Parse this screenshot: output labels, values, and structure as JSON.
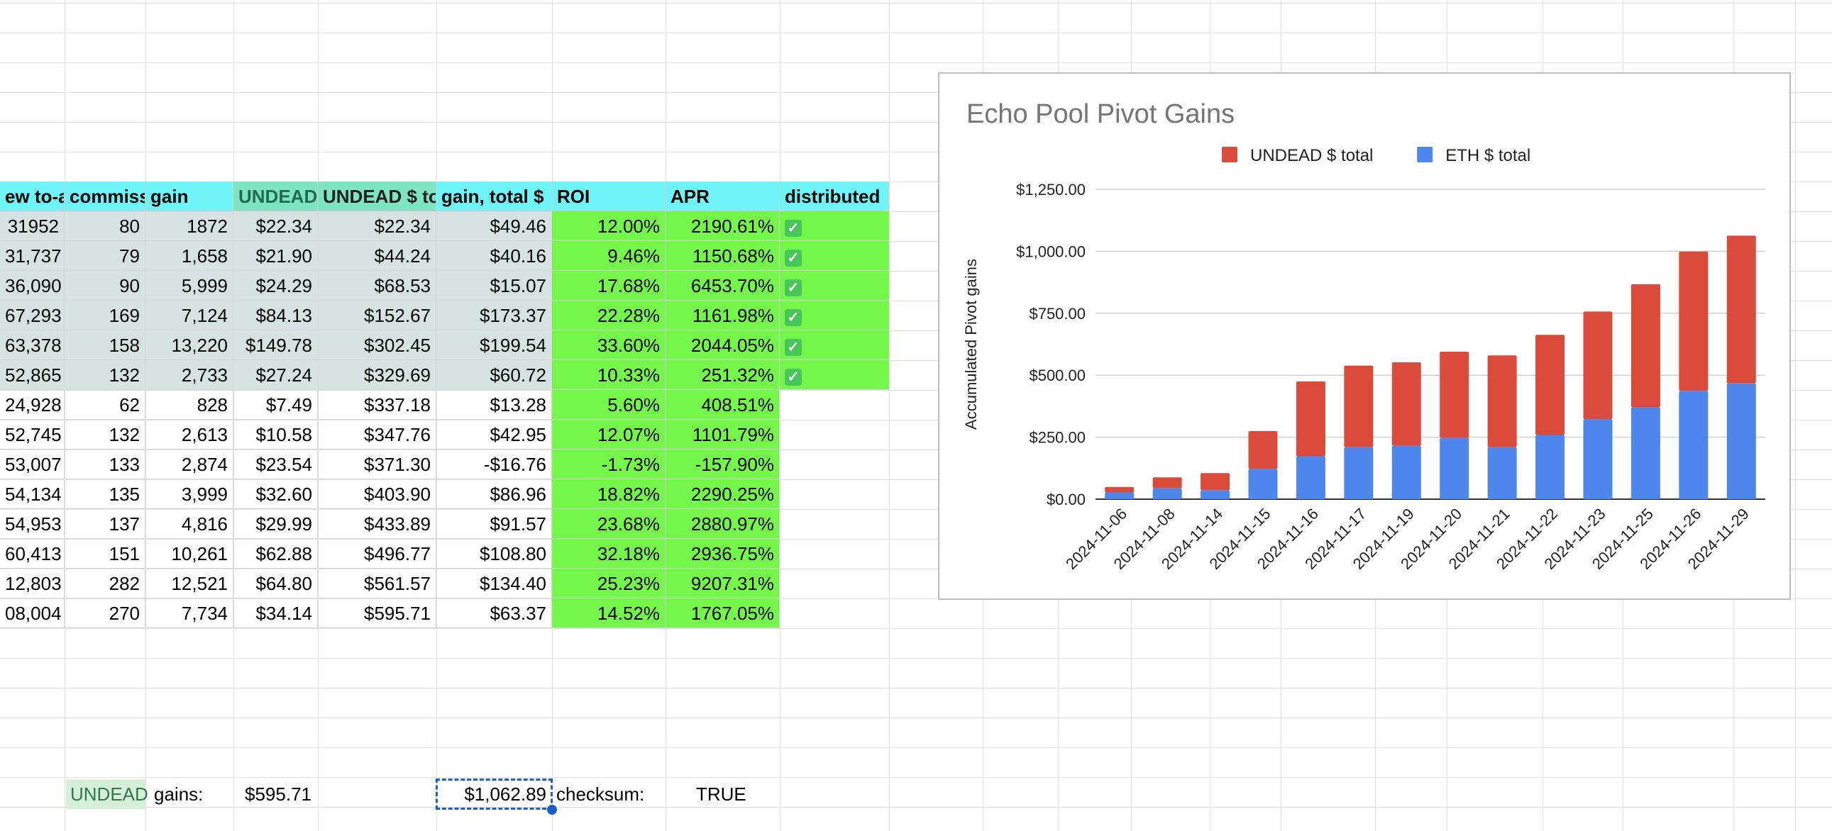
{
  "sheet": {
    "headers": [
      "ew to-ac",
      "commiss",
      "gain",
      "UNDEAD",
      "UNDEAD $ to",
      "gain, total $",
      "ROI",
      "APR",
      "distributed"
    ],
    "rows": [
      {
        "c0": "31952",
        "c1": "80",
        "c2": "1872",
        "c3": "$22.34",
        "c4": "$22.34",
        "c5": "$49.46",
        "c6": "12.00%",
        "c7": "2190.61%",
        "dist": true
      },
      {
        "c0": "31,737",
        "c1": "79",
        "c2": "1,658",
        "c3": "$21.90",
        "c4": "$44.24",
        "c5": "$40.16",
        "c6": "9.46%",
        "c7": "1150.68%",
        "dist": true
      },
      {
        "c0": "36,090",
        "c1": "90",
        "c2": "5,999",
        "c3": "$24.29",
        "c4": "$68.53",
        "c5": "$15.07",
        "c6": "17.68%",
        "c7": "6453.70%",
        "dist": true
      },
      {
        "c0": "67,293",
        "c1": "169",
        "c2": "7,124",
        "c3": "$84.13",
        "c4": "$152.67",
        "c5": "$173.37",
        "c6": "22.28%",
        "c7": "1161.98%",
        "dist": true
      },
      {
        "c0": "63,378",
        "c1": "158",
        "c2": "13,220",
        "c3": "$149.78",
        "c4": "$302.45",
        "c5": "$199.54",
        "c6": "33.60%",
        "c7": "2044.05%",
        "dist": true
      },
      {
        "c0": "52,865",
        "c1": "132",
        "c2": "2,733",
        "c3": "$27.24",
        "c4": "$329.69",
        "c5": "$60.72",
        "c6": "10.33%",
        "c7": "251.32%",
        "dist": true
      },
      {
        "c0": "24,928",
        "c1": "62",
        "c2": "828",
        "c3": "$7.49",
        "c4": "$337.18",
        "c5": "$13.28",
        "c6": "5.60%",
        "c7": "408.51%",
        "dist": false
      },
      {
        "c0": "52,745",
        "c1": "132",
        "c2": "2,613",
        "c3": "$10.58",
        "c4": "$347.76",
        "c5": "$42.95",
        "c6": "12.07%",
        "c7": "1101.79%",
        "dist": false
      },
      {
        "c0": "53,007",
        "c1": "133",
        "c2": "2,874",
        "c3": "$23.54",
        "c4": "$371.30",
        "c5": "-$16.76",
        "c6": "-1.73%",
        "c7": "-157.90%",
        "dist": false
      },
      {
        "c0": "54,134",
        "c1": "135",
        "c2": "3,999",
        "c3": "$32.60",
        "c4": "$403.90",
        "c5": "$86.96",
        "c6": "18.82%",
        "c7": "2290.25%",
        "dist": false
      },
      {
        "c0": "54,953",
        "c1": "137",
        "c2": "4,816",
        "c3": "$29.99",
        "c4": "$433.89",
        "c5": "$91.57",
        "c6": "23.68%",
        "c7": "2880.97%",
        "dist": false
      },
      {
        "c0": "60,413",
        "c1": "151",
        "c2": "10,261",
        "c3": "$62.88",
        "c4": "$496.77",
        "c5": "$108.80",
        "c6": "32.18%",
        "c7": "2936.75%",
        "dist": false
      },
      {
        "c0": "12,803",
        "c1": "282",
        "c2": "12,521",
        "c3": "$64.80",
        "c4": "$561.57",
        "c5": "$134.40",
        "c6": "25.23%",
        "c7": "9207.31%",
        "dist": false
      },
      {
        "c0": "08,004",
        "c1": "270",
        "c2": "7,734",
        "c3": "$34.14",
        "c4": "$595.71",
        "c5": "$63.37",
        "c6": "14.52%",
        "c7": "1767.05%",
        "dist": false
      }
    ],
    "footer": {
      "undead_label": "UNDEAD",
      "gains_label": "gains:",
      "gains_value": "$595.71",
      "total_value": "$1,062.89",
      "checksum_label": "checksum:",
      "checksum_value": "TRUE"
    },
    "colors": {
      "header": "#6ff5f7",
      "header_undead": "#7ee5c4",
      "gray": "#d7e2e5",
      "green": "#74f74a",
      "checkbox": "#48c65a"
    }
  },
  "chart_data": {
    "type": "bar",
    "stacked": true,
    "title": "Echo Pool Pivot Gains",
    "xlabel": "",
    "ylabel": "Accumulated Pivot gains",
    "categories": [
      "2024-11-06",
      "2024-11-08",
      "2024-11-14",
      "2024-11-15",
      "2024-11-16",
      "2024-11-17",
      "2024-11-19",
      "2024-11-20",
      "2024-11-21",
      "2024-11-22",
      "2024-11-23",
      "2024-11-25",
      "2024-11-26",
      "2024-11-29"
    ],
    "series": [
      {
        "name": "ETH $ total",
        "color": "#4f86ec",
        "values": [
          27,
          44,
          36,
          122,
          173,
          209,
          215,
          247,
          209,
          259,
          323,
          370,
          437,
          467
        ]
      },
      {
        "name": "UNDEAD $ total",
        "color": "#db4b3c",
        "values": [
          22,
          44,
          69,
          153,
          302,
          330,
          337,
          348,
          371,
          404,
          434,
          497,
          562,
          596
        ]
      }
    ],
    "ylim": [
      0,
      1250
    ],
    "yticks": [
      "$0.00",
      "$250.00",
      "$500.00",
      "$750.00",
      "$1,000.00",
      "$1,250.00"
    ],
    "legend_position": "top",
    "grid": true
  }
}
